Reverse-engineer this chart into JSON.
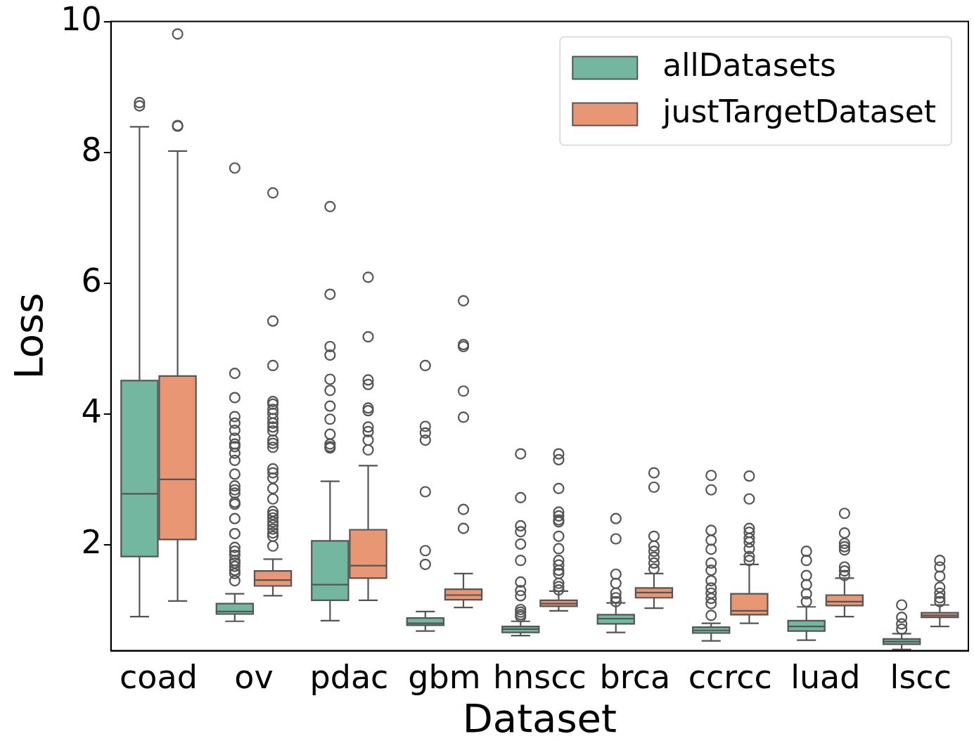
{
  "chart_data": {
    "type": "box",
    "xlabel": "Dataset",
    "ylabel": "Loss",
    "categories": [
      "coad",
      "ov",
      "pdac",
      "gbm",
      "hnscc",
      "brca",
      "ccrcc",
      "luad",
      "lscc"
    ],
    "ylim": [
      0.38,
      10
    ],
    "yticks": [
      2,
      4,
      6,
      8,
      10
    ],
    "grid": false,
    "legend": "top right",
    "marker": "circle",
    "series": [
      {
        "name": "allDatasets",
        "color": "#73b7a0",
        "boxes": [
          {
            "low": 0.9,
            "q1": 1.82,
            "median": 2.78,
            "q3": 4.51,
            "high": 8.39,
            "outliers": [
              8.76,
              8.71
            ]
          },
          {
            "low": 0.83,
            "q1": 0.94,
            "median": 0.98,
            "q3": 1.1,
            "high": 1.25,
            "outliers": [
              7.76,
              4.62,
              4.25,
              3.96,
              3.86,
              3.75,
              3.63,
              3.54,
              3.5,
              3.4,
              3.29,
              3.08,
              2.9,
              2.84,
              2.79,
              2.65,
              2.62,
              2.4,
              2.17,
              1.96,
              1.9,
              1.84,
              1.76,
              1.72,
              1.67,
              1.61,
              1.56,
              1.45
            ]
          },
          {
            "low": 0.84,
            "q1": 1.15,
            "median": 1.39,
            "q3": 2.06,
            "high": 2.97,
            "outliers": [
              7.17,
              5.83,
              5.03,
              4.9,
              4.53,
              4.36,
              4.12,
              3.92,
              3.69,
              3.54,
              3.5,
              3.48
            ]
          },
          {
            "low": 0.68,
            "q1": 0.77,
            "median": 0.8,
            "q3": 0.88,
            "high": 0.98,
            "outliers": [
              4.74,
              3.81,
              3.71,
              3.6,
              2.81,
              1.91,
              1.7
            ]
          },
          {
            "low": 0.61,
            "q1": 0.66,
            "median": 0.71,
            "q3": 0.75,
            "high": 0.83,
            "outliers": [
              3.39,
              2.72,
              2.29,
              2.2,
              2.01,
              1.76,
              1.43,
              1.3,
              1.22,
              1.01,
              0.97,
              0.93,
              0.9
            ]
          },
          {
            "low": 0.66,
            "q1": 0.79,
            "median": 0.87,
            "q3": 0.93,
            "high": 1.11,
            "outliers": [
              2.4,
              2.09,
              1.55,
              1.41,
              1.26,
              1.19,
              1.13
            ]
          },
          {
            "low": 0.53,
            "q1": 0.65,
            "median": 0.69,
            "q3": 0.74,
            "high": 0.8,
            "outliers": [
              3.06,
              2.84,
              2.22,
              2.07,
              1.93,
              1.72,
              1.61,
              1.45,
              1.34,
              1.26,
              1.18,
              1.1,
              0.92
            ]
          },
          {
            "low": 0.54,
            "q1": 0.68,
            "median": 0.75,
            "q3": 0.84,
            "high": 1.05,
            "outliers": [
              1.9,
              1.76,
              1.53,
              1.39,
              1.25,
              1.13
            ]
          },
          {
            "low": 0.4,
            "q1": 0.48,
            "median": 0.52,
            "q3": 0.56,
            "high": 0.64,
            "outliers": [
              1.08,
              0.89,
              0.79,
              0.71
            ]
          }
        ]
      },
      {
        "name": "justTargetDataset",
        "color": "#e99675",
        "boxes": [
          {
            "low": 1.14,
            "q1": 2.08,
            "median": 3.0,
            "q3": 4.58,
            "high": 8.02,
            "outliers": [
              9.81,
              8.41,
              8.4
            ]
          },
          {
            "low": 1.22,
            "q1": 1.37,
            "median": 1.46,
            "q3": 1.6,
            "high": 1.78,
            "outliers": [
              7.38,
              5.42,
              4.74,
              4.19,
              4.15,
              4.07,
              4.01,
              3.93,
              3.86,
              3.8,
              3.74,
              3.6,
              3.55,
              3.49,
              3.16,
              3.1,
              3.02,
              2.86,
              2.7,
              2.51,
              2.46,
              2.41,
              2.35,
              2.3,
              2.24,
              2.18,
              2.13,
              1.98
            ]
          },
          {
            "low": 1.15,
            "q1": 1.49,
            "median": 1.68,
            "q3": 2.23,
            "high": 3.21,
            "outliers": [
              6.09,
              5.18,
              4.52,
              4.45,
              4.09,
              4.05,
              3.8,
              3.73,
              3.6,
              3.45
            ]
          },
          {
            "low": 1.04,
            "q1": 1.16,
            "median": 1.23,
            "q3": 1.32,
            "high": 1.56,
            "outliers": [
              5.73,
              5.06,
              5.03,
              4.35,
              3.95,
              2.54,
              2.25
            ]
          },
          {
            "low": 0.99,
            "q1": 1.06,
            "median": 1.1,
            "q3": 1.15,
            "high": 1.29,
            "outliers": [
              3.39,
              3.3,
              2.86,
              2.5,
              2.44,
              2.38,
              2.35,
              2.13,
              1.94,
              1.76,
              1.69,
              1.61,
              1.56,
              1.41,
              1.36,
              1.31
            ]
          },
          {
            "low": 1.03,
            "q1": 1.19,
            "median": 1.27,
            "q3": 1.34,
            "high": 1.56,
            "outliers": [
              3.1,
              2.88,
              2.13,
              1.98,
              1.9,
              1.81,
              1.72,
              1.63
            ]
          },
          {
            "low": 0.8,
            "q1": 0.93,
            "median": 0.99,
            "q3": 1.25,
            "high": 1.7,
            "outliers": [
              3.05,
              2.7,
              2.25,
              2.19,
              2.1,
              2.04,
              1.94,
              1.82,
              1.76
            ]
          },
          {
            "low": 0.9,
            "q1": 1.07,
            "median": 1.13,
            "q3": 1.23,
            "high": 1.49,
            "outliers": [
              2.48,
              2.18,
              2.02,
              1.97,
              1.92,
              1.66,
              1.6,
              1.53
            ]
          },
          {
            "low": 0.75,
            "q1": 0.89,
            "median": 0.92,
            "q3": 0.96,
            "high": 1.08,
            "outliers": [
              1.76,
              1.66,
              1.52,
              1.35,
              1.26,
              1.19,
              1.13
            ]
          }
        ]
      }
    ]
  }
}
